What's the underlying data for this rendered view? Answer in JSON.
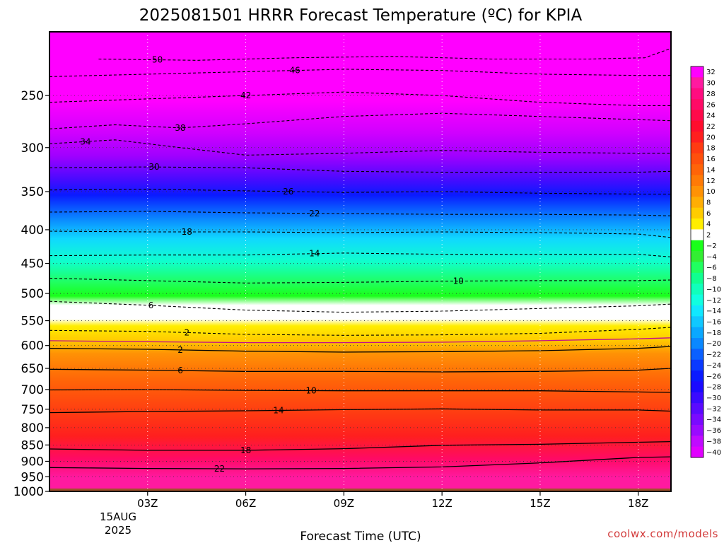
{
  "chart_data": {
    "type": "heatmap",
    "title": "2025081501 HRRR Forecast Temperature (ºC) for KPIA",
    "xlabel": "Forecast Time (UTC)",
    "ylabel": "",
    "credit": "coolwx.com/models",
    "x_ticks": [
      "03Z",
      "06Z",
      "09Z",
      "12Z",
      "15Z",
      "18Z"
    ],
    "x_ticks_hours": [
      3,
      6,
      9,
      12,
      15,
      18
    ],
    "xlim_hours": [
      0,
      19
    ],
    "date_label": [
      "15AUG",
      "2025"
    ],
    "y_ticks": [
      "250",
      "300",
      "350",
      "400",
      "450",
      "500",
      "550",
      "600",
      "650",
      "700",
      "750",
      "800",
      "850",
      "900",
      "950",
      "1000"
    ],
    "y_ticks_hpa": [
      250,
      300,
      350,
      400,
      450,
      500,
      550,
      600,
      650,
      700,
      750,
      800,
      850,
      900,
      950,
      1000
    ],
    "ylim_hpa": [
      1000,
      200
    ],
    "y_scale": "log-pressure (inverted)",
    "grid": "dotted",
    "colorbar_labels": [
      "32",
      "30",
      "28",
      "26",
      "24",
      "22",
      "20",
      "18",
      "16",
      "14",
      "12",
      "10",
      "8",
      "6",
      "4",
      "2",
      "−2",
      "−4",
      "−6",
      "−8",
      "−10",
      "−12",
      "−14",
      "−16",
      "−18",
      "−20",
      "−22",
      "−24",
      "−26",
      "−28",
      "−30",
      "−32",
      "−34",
      "−36",
      "−38",
      "−40"
    ],
    "colorbar_colors": [
      "#ff00ff",
      "#ff1aa0",
      "#ff0c80",
      "#ff0a66",
      "#ff0a4a",
      "#ff0d2e",
      "#ff1f1f",
      "#ff3b12",
      "#ff500c",
      "#ff6408",
      "#ff7a06",
      "#ff9205",
      "#ffae04",
      "#ffcc00",
      "#ffee00",
      "#ffffff",
      "#1aff1a",
      "#33ee33",
      "#20ff60",
      "#10ff90",
      "#10ffbb",
      "#10ffe0",
      "#10e8ff",
      "#10c8ff",
      "#0aa8ff",
      "#0a88ff",
      "#0a60ff",
      "#0a3aff",
      "#0a1aff",
      "#1a0aff",
      "#3a0aff",
      "#5a0aff",
      "#7a0aff",
      "#9a0aff",
      "#c00aff",
      "#e000ff"
    ],
    "series": [
      {
        "name": "-50",
        "values": [
          [
            1.5,
            220
          ],
          [
            4.5,
            221
          ],
          [
            7.5,
            219
          ],
          [
            10.5,
            218
          ],
          [
            13.5,
            220
          ],
          [
            16.5,
            220
          ],
          [
            18.2,
            219
          ],
          [
            19,
            212
          ]
        ],
        "label_hour": 3.3,
        "dashed": true
      },
      {
        "name": "-46",
        "values": [
          [
            0,
            234
          ],
          [
            3,
            232
          ],
          [
            6,
            230
          ],
          [
            9,
            228
          ],
          [
            12,
            229
          ],
          [
            15,
            232
          ],
          [
            18,
            233
          ],
          [
            19,
            233
          ]
        ],
        "label_hour": 7.5,
        "dashed": true
      },
      {
        "name": "-42",
        "values": [
          [
            0,
            256
          ],
          [
            3,
            253
          ],
          [
            6,
            250
          ],
          [
            9,
            247
          ],
          [
            12,
            250
          ],
          [
            15,
            256
          ],
          [
            18,
            259
          ],
          [
            19,
            259
          ]
        ],
        "label_hour": 6.0,
        "dashed": true
      },
      {
        "name": "-38",
        "values": [
          [
            0,
            281
          ],
          [
            2,
            277
          ],
          [
            4,
            280
          ],
          [
            6,
            276
          ],
          [
            9,
            269
          ],
          [
            12,
            266
          ],
          [
            15,
            269
          ],
          [
            18,
            272
          ],
          [
            19,
            273
          ]
        ],
        "label_hour": 4.0,
        "dashed": true
      },
      {
        "name": "-34",
        "values": [
          [
            0,
            296
          ],
          [
            2,
            292
          ],
          [
            4,
            300
          ],
          [
            6,
            308
          ],
          [
            9,
            306
          ],
          [
            12,
            303
          ],
          [
            15,
            305
          ],
          [
            18,
            306
          ],
          [
            19,
            306
          ]
        ],
        "label_hour": 1.1,
        "dashed": true
      },
      {
        "name": "-30",
        "values": [
          [
            0,
            322
          ],
          [
            3,
            321
          ],
          [
            6,
            322
          ],
          [
            9,
            326
          ],
          [
            12,
            327
          ],
          [
            15,
            327
          ],
          [
            18,
            327
          ],
          [
            19,
            326
          ]
        ],
        "label_hour": 3.2,
        "dashed": true
      },
      {
        "name": "-26",
        "values": [
          [
            0,
            348
          ],
          [
            3,
            347
          ],
          [
            6,
            349
          ],
          [
            9,
            351
          ],
          [
            12,
            350
          ],
          [
            15,
            352
          ],
          [
            18,
            353
          ],
          [
            19,
            353
          ]
        ],
        "label_hour": 7.3,
        "dashed": true
      },
      {
        "name": "-22",
        "values": [
          [
            0,
            376
          ],
          [
            3,
            375
          ],
          [
            6,
            377
          ],
          [
            9,
            378
          ],
          [
            12,
            379
          ],
          [
            15,
            379
          ],
          [
            18,
            380
          ],
          [
            19,
            381
          ]
        ],
        "label_hour": 8.1,
        "dashed": true
      },
      {
        "name": "-18",
        "values": [
          [
            0,
            402
          ],
          [
            3,
            403
          ],
          [
            6,
            403
          ],
          [
            9,
            404
          ],
          [
            12,
            403
          ],
          [
            15,
            404
          ],
          [
            18,
            406
          ],
          [
            19,
            411
          ]
        ],
        "label_hour": 4.2,
        "dashed": true
      },
      {
        "name": "-14",
        "values": [
          [
            0,
            438
          ],
          [
            3,
            437
          ],
          [
            6,
            437
          ],
          [
            9,
            434
          ],
          [
            12,
            436
          ],
          [
            15,
            436
          ],
          [
            18,
            436
          ],
          [
            19,
            440
          ]
        ],
        "label_hour": 8.1,
        "dashed": true
      },
      {
        "name": "-10",
        "values": [
          [
            0,
            474
          ],
          [
            3,
            478
          ],
          [
            6,
            482
          ],
          [
            9,
            481
          ],
          [
            12,
            479
          ],
          [
            15,
            478
          ],
          [
            18,
            478
          ],
          [
            19,
            477
          ]
        ],
        "label_hour": 12.5,
        "dashed": true
      },
      {
        "name": "-6",
        "values": [
          [
            0,
            514
          ],
          [
            3,
            521
          ],
          [
            6,
            530
          ],
          [
            9,
            534
          ],
          [
            12,
            532
          ],
          [
            15,
            527
          ],
          [
            18,
            522
          ],
          [
            19,
            519
          ]
        ],
        "label_hour": 3.1,
        "dashed": true
      },
      {
        "name": "-2",
        "values": [
          [
            0,
            569
          ],
          [
            3,
            571
          ],
          [
            6,
            577
          ],
          [
            9,
            579
          ],
          [
            12,
            578
          ],
          [
            15,
            575
          ],
          [
            18,
            567
          ],
          [
            19,
            563
          ]
        ],
        "label_hour": 4.2,
        "dashed": true
      },
      {
        "name": "0",
        "values": [
          [
            0,
            590
          ],
          [
            3,
            592
          ],
          [
            6,
            594
          ],
          [
            9,
            594
          ],
          [
            12,
            593
          ],
          [
            15,
            590
          ],
          [
            18,
            586
          ],
          [
            19,
            584
          ]
        ],
        "label_hour": null,
        "dashed": false,
        "magenta": true
      },
      {
        "name": "2",
        "values": [
          [
            0,
            606
          ],
          [
            3,
            608
          ],
          [
            6,
            612
          ],
          [
            9,
            614
          ],
          [
            12,
            613
          ],
          [
            15,
            611
          ],
          [
            18,
            606
          ],
          [
            19,
            602
          ]
        ],
        "label_hour": 4.0,
        "dashed": false
      },
      {
        "name": "6",
        "values": [
          [
            0,
            652
          ],
          [
            3,
            654
          ],
          [
            6,
            657
          ],
          [
            9,
            657
          ],
          [
            12,
            658
          ],
          [
            15,
            657
          ],
          [
            18,
            654
          ],
          [
            19,
            650
          ]
        ],
        "label_hour": 4.0,
        "dashed": false
      },
      {
        "name": "10",
        "values": [
          [
            0,
            701
          ],
          [
            3,
            700
          ],
          [
            6,
            702
          ],
          [
            9,
            703
          ],
          [
            12,
            703
          ],
          [
            15,
            703
          ],
          [
            18,
            706
          ],
          [
            19,
            707
          ]
        ],
        "label_hour": 8.0,
        "dashed": false
      },
      {
        "name": "14",
        "values": [
          [
            0,
            759
          ],
          [
            3,
            756
          ],
          [
            6,
            754
          ],
          [
            9,
            751
          ],
          [
            12,
            749
          ],
          [
            15,
            752
          ],
          [
            18,
            752
          ],
          [
            19,
            755
          ]
        ],
        "label_hour": 7.0,
        "dashed": false
      },
      {
        "name": "18",
        "values": [
          [
            0,
            862
          ],
          [
            3,
            866
          ],
          [
            6,
            866
          ],
          [
            9,
            861
          ],
          [
            12,
            851
          ],
          [
            15,
            848
          ],
          [
            18,
            842
          ],
          [
            19,
            840
          ]
        ],
        "label_hour": 6.0,
        "dashed": false
      },
      {
        "name": "22",
        "values": [
          [
            0,
            920
          ],
          [
            3,
            923
          ],
          [
            6,
            924
          ],
          [
            9,
            923
          ],
          [
            12,
            918
          ],
          [
            15,
            905
          ],
          [
            18,
            888
          ],
          [
            19,
            886
          ]
        ],
        "label_hour": 5.2,
        "dashed": false
      }
    ],
    "surface_hpa": 990
  }
}
